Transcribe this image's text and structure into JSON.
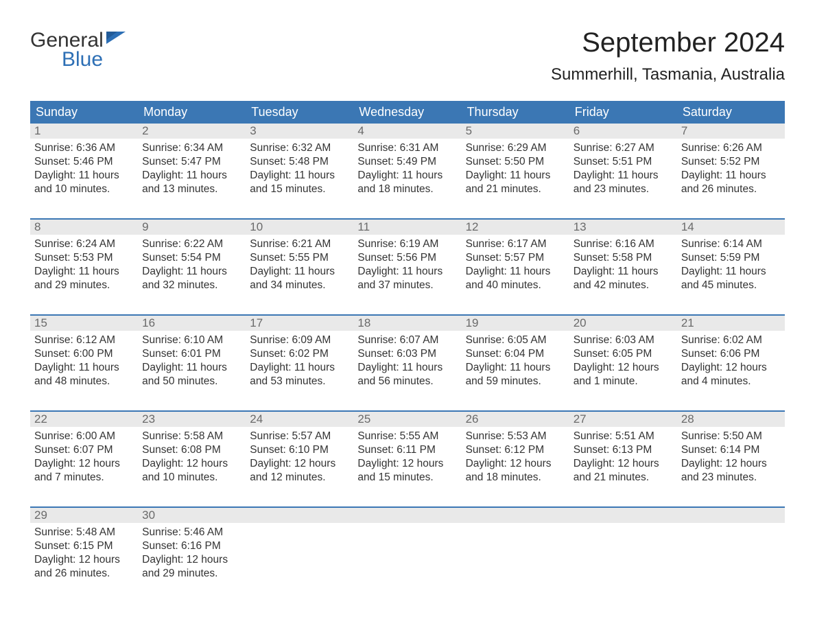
{
  "logo": {
    "top": "General",
    "bottom": "Blue"
  },
  "title": "September 2024",
  "location": "Summerhill, Tasmania, Australia",
  "colors": {
    "header_bg": "#3b77b4",
    "header_text": "#ffffff",
    "daynum_bg": "#e9e9e9",
    "daynum_text": "#6a6a6a",
    "body_text": "#333333",
    "logo_accent": "#2d6fb5",
    "week_border": "#3b77b4",
    "page_bg": "#ffffff"
  },
  "day_labels": [
    "Sunday",
    "Monday",
    "Tuesday",
    "Wednesday",
    "Thursday",
    "Friday",
    "Saturday"
  ],
  "weeks": [
    [
      {
        "n": "1",
        "sunrise": "Sunrise: 6:36 AM",
        "sunset": "Sunset: 5:46 PM",
        "daylight": "Daylight: 11 hours and 10 minutes."
      },
      {
        "n": "2",
        "sunrise": "Sunrise: 6:34 AM",
        "sunset": "Sunset: 5:47 PM",
        "daylight": "Daylight: 11 hours and 13 minutes."
      },
      {
        "n": "3",
        "sunrise": "Sunrise: 6:32 AM",
        "sunset": "Sunset: 5:48 PM",
        "daylight": "Daylight: 11 hours and 15 minutes."
      },
      {
        "n": "4",
        "sunrise": "Sunrise: 6:31 AM",
        "sunset": "Sunset: 5:49 PM",
        "daylight": "Daylight: 11 hours and 18 minutes."
      },
      {
        "n": "5",
        "sunrise": "Sunrise: 6:29 AM",
        "sunset": "Sunset: 5:50 PM",
        "daylight": "Daylight: 11 hours and 21 minutes."
      },
      {
        "n": "6",
        "sunrise": "Sunrise: 6:27 AM",
        "sunset": "Sunset: 5:51 PM",
        "daylight": "Daylight: 11 hours and 23 minutes."
      },
      {
        "n": "7",
        "sunrise": "Sunrise: 6:26 AM",
        "sunset": "Sunset: 5:52 PM",
        "daylight": "Daylight: 11 hours and 26 minutes."
      }
    ],
    [
      {
        "n": "8",
        "sunrise": "Sunrise: 6:24 AM",
        "sunset": "Sunset: 5:53 PM",
        "daylight": "Daylight: 11 hours and 29 minutes."
      },
      {
        "n": "9",
        "sunrise": "Sunrise: 6:22 AM",
        "sunset": "Sunset: 5:54 PM",
        "daylight": "Daylight: 11 hours and 32 minutes."
      },
      {
        "n": "10",
        "sunrise": "Sunrise: 6:21 AM",
        "sunset": "Sunset: 5:55 PM",
        "daylight": "Daylight: 11 hours and 34 minutes."
      },
      {
        "n": "11",
        "sunrise": "Sunrise: 6:19 AM",
        "sunset": "Sunset: 5:56 PM",
        "daylight": "Daylight: 11 hours and 37 minutes."
      },
      {
        "n": "12",
        "sunrise": "Sunrise: 6:17 AM",
        "sunset": "Sunset: 5:57 PM",
        "daylight": "Daylight: 11 hours and 40 minutes."
      },
      {
        "n": "13",
        "sunrise": "Sunrise: 6:16 AM",
        "sunset": "Sunset: 5:58 PM",
        "daylight": "Daylight: 11 hours and 42 minutes."
      },
      {
        "n": "14",
        "sunrise": "Sunrise: 6:14 AM",
        "sunset": "Sunset: 5:59 PM",
        "daylight": "Daylight: 11 hours and 45 minutes."
      }
    ],
    [
      {
        "n": "15",
        "sunrise": "Sunrise: 6:12 AM",
        "sunset": "Sunset: 6:00 PM",
        "daylight": "Daylight: 11 hours and 48 minutes."
      },
      {
        "n": "16",
        "sunrise": "Sunrise: 6:10 AM",
        "sunset": "Sunset: 6:01 PM",
        "daylight": "Daylight: 11 hours and 50 minutes."
      },
      {
        "n": "17",
        "sunrise": "Sunrise: 6:09 AM",
        "sunset": "Sunset: 6:02 PM",
        "daylight": "Daylight: 11 hours and 53 minutes."
      },
      {
        "n": "18",
        "sunrise": "Sunrise: 6:07 AM",
        "sunset": "Sunset: 6:03 PM",
        "daylight": "Daylight: 11 hours and 56 minutes."
      },
      {
        "n": "19",
        "sunrise": "Sunrise: 6:05 AM",
        "sunset": "Sunset: 6:04 PM",
        "daylight": "Daylight: 11 hours and 59 minutes."
      },
      {
        "n": "20",
        "sunrise": "Sunrise: 6:03 AM",
        "sunset": "Sunset: 6:05 PM",
        "daylight": "Daylight: 12 hours and 1 minute."
      },
      {
        "n": "21",
        "sunrise": "Sunrise: 6:02 AM",
        "sunset": "Sunset: 6:06 PM",
        "daylight": "Daylight: 12 hours and 4 minutes."
      }
    ],
    [
      {
        "n": "22",
        "sunrise": "Sunrise: 6:00 AM",
        "sunset": "Sunset: 6:07 PM",
        "daylight": "Daylight: 12 hours and 7 minutes."
      },
      {
        "n": "23",
        "sunrise": "Sunrise: 5:58 AM",
        "sunset": "Sunset: 6:08 PM",
        "daylight": "Daylight: 12 hours and 10 minutes."
      },
      {
        "n": "24",
        "sunrise": "Sunrise: 5:57 AM",
        "sunset": "Sunset: 6:10 PM",
        "daylight": "Daylight: 12 hours and 12 minutes."
      },
      {
        "n": "25",
        "sunrise": "Sunrise: 5:55 AM",
        "sunset": "Sunset: 6:11 PM",
        "daylight": "Daylight: 12 hours and 15 minutes."
      },
      {
        "n": "26",
        "sunrise": "Sunrise: 5:53 AM",
        "sunset": "Sunset: 6:12 PM",
        "daylight": "Daylight: 12 hours and 18 minutes."
      },
      {
        "n": "27",
        "sunrise": "Sunrise: 5:51 AM",
        "sunset": "Sunset: 6:13 PM",
        "daylight": "Daylight: 12 hours and 21 minutes."
      },
      {
        "n": "28",
        "sunrise": "Sunrise: 5:50 AM",
        "sunset": "Sunset: 6:14 PM",
        "daylight": "Daylight: 12 hours and 23 minutes."
      }
    ],
    [
      {
        "n": "29",
        "sunrise": "Sunrise: 5:48 AM",
        "sunset": "Sunset: 6:15 PM",
        "daylight": "Daylight: 12 hours and 26 minutes."
      },
      {
        "n": "30",
        "sunrise": "Sunrise: 5:46 AM",
        "sunset": "Sunset: 6:16 PM",
        "daylight": "Daylight: 12 hours and 29 minutes."
      },
      null,
      null,
      null,
      null,
      null
    ]
  ]
}
